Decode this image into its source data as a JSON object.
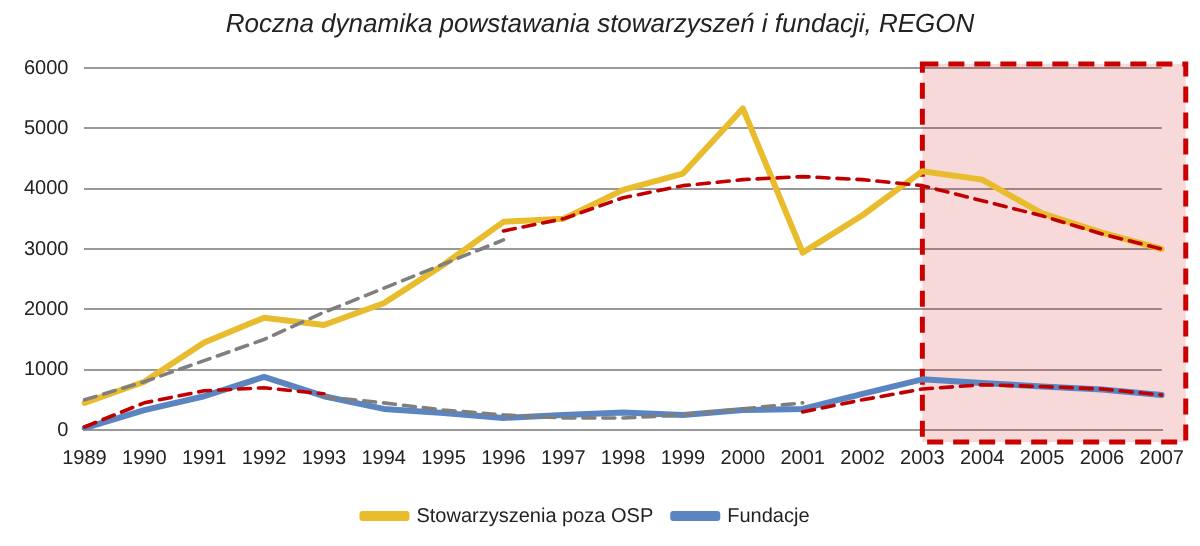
{
  "chart_data": {
    "type": "line",
    "title": "Roczna dynamika powstawania stowarzyszeń i fundacji, REGON",
    "categories": [
      "1989",
      "1990",
      "1991",
      "1992",
      "1993",
      "1994",
      "1995",
      "1996",
      "1997",
      "1998",
      "1999",
      "2000",
      "2001",
      "2002",
      "2003",
      "2004",
      "2005",
      "2006",
      "2007"
    ],
    "series": [
      {
        "name": "Stowarzyszenia poza OSP",
        "color": "#e8bc2c",
        "values": [
          450,
          800,
          1450,
          1860,
          1740,
          2100,
          2740,
          3450,
          3500,
          3980,
          4250,
          5330,
          2940,
          3560,
          4290,
          4150,
          3590,
          3270,
          3000
        ]
      },
      {
        "name": "Fundacje",
        "color": "#5a85c0",
        "values": [
          30,
          330,
          560,
          880,
          560,
          350,
          280,
          200,
          250,
          290,
          250,
          330,
          350,
          600,
          840,
          780,
          720,
          670,
          580
        ]
      },
      {
        "color": "#7f7f7f",
        "line_style": "dashed",
        "values": [
          500,
          800,
          1150,
          1500,
          1950,
          2350,
          2750,
          3150,
          null,
          null,
          null,
          null,
          null,
          null,
          null,
          null,
          null,
          null,
          null
        ]
      },
      {
        "color": "#c00000",
        "line_style": "dashed",
        "values": [
          null,
          null,
          null,
          null,
          null,
          null,
          null,
          3300,
          3500,
          3850,
          4050,
          4150,
          4200,
          4150,
          4050,
          3800,
          3550,
          3250,
          3000
        ]
      },
      {
        "color": "#7f7f7f",
        "line_style": "dashed",
        "values": [
          null,
          null,
          null,
          null,
          550,
          450,
          330,
          250,
          200,
          200,
          250,
          350,
          450,
          null,
          null,
          null,
          null,
          null,
          null
        ]
      },
      {
        "color": "#c00000",
        "line_style": "dashed",
        "values": [
          50,
          450,
          650,
          700,
          600,
          null,
          null,
          null,
          null,
          null,
          null,
          null,
          300,
          500,
          680,
          750,
          720,
          680,
          580
        ]
      }
    ],
    "ylim": [
      0,
      6000
    ],
    "yticks": [
      0,
      1000,
      2000,
      3000,
      4000,
      5000,
      6000
    ],
    "grid": "y",
    "legend": "bottom",
    "marker": "none",
    "line_style": "solid",
    "bands": [
      {
        "axis": "x",
        "from": "2003",
        "to": "2007",
        "color": "#cc0000"
      }
    ]
  }
}
